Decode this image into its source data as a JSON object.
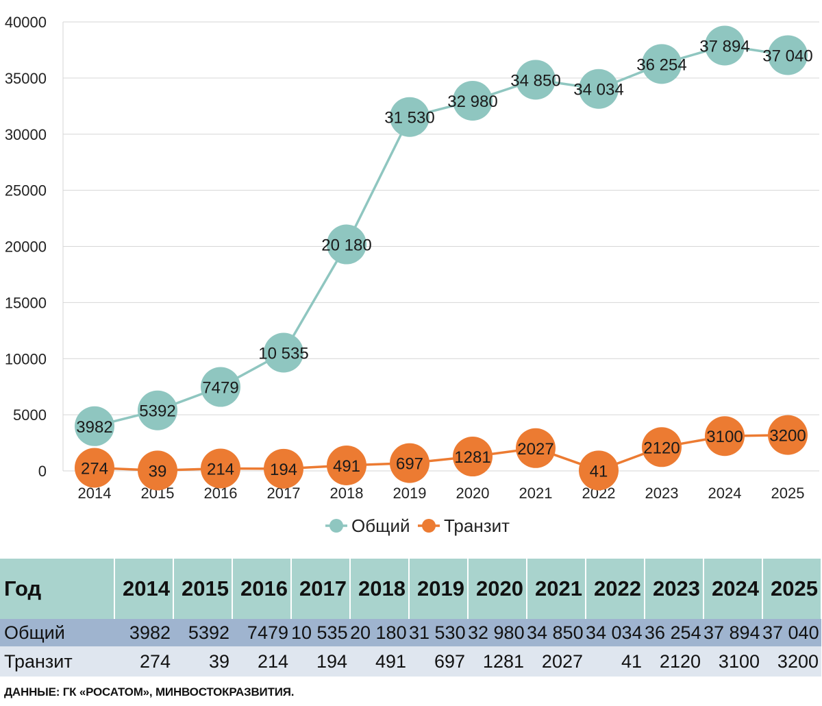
{
  "chart_data": {
    "type": "line",
    "categories": [
      "2014",
      "2015",
      "2016",
      "2017",
      "2018",
      "2019",
      "2020",
      "2021",
      "2022",
      "2023",
      "2024",
      "2025"
    ],
    "series": [
      {
        "name": "Общий",
        "color": "#8fc6c0",
        "values": [
          3982,
          5392,
          7479,
          10535,
          20180,
          31530,
          32980,
          34850,
          34034,
          36254,
          37894,
          37040
        ],
        "labels": [
          "3982",
          "5392",
          "7479",
          "10 535",
          "20 180",
          "31 530",
          "32 980",
          "34 850",
          "34 034",
          "36 254",
          "37 894",
          "37 040"
        ]
      },
      {
        "name": "Транзит",
        "color": "#ec7b32",
        "values": [
          274,
          39,
          214,
          194,
          491,
          697,
          1281,
          2027,
          41,
          2120,
          3100,
          3200
        ],
        "labels": [
          "274",
          "39",
          "214",
          "194",
          "491",
          "697",
          "1281",
          "2027",
          "41",
          "2120",
          "3100",
          "3200"
        ]
      }
    ],
    "ylim": [
      0,
      40000
    ],
    "yticks": [
      "0",
      "5000",
      "10000",
      "15000",
      "20000",
      "25000",
      "30000",
      "35000",
      "40000"
    ],
    "grid": true,
    "legend": "bottom-center"
  },
  "table": {
    "header_label": "Год",
    "years": [
      "2014",
      "2015",
      "2016",
      "2017",
      "2018",
      "2019",
      "2020",
      "2021",
      "2022",
      "2023",
      "2024",
      "2025"
    ],
    "rows": [
      {
        "label": "Общий",
        "values": [
          "3982",
          "5392",
          "7479",
          "10 535",
          "20 180",
          "31 530",
          "32 980",
          "34 850",
          "34 034",
          "36 254",
          "37 894",
          "37 040"
        ]
      },
      {
        "label": "Транзит",
        "values": [
          "274",
          "39",
          "214",
          "194",
          "491",
          "697",
          "1281",
          "2027",
          "41",
          "2120",
          "3100",
          "3200"
        ]
      }
    ]
  },
  "source_note": "ДАННЫЕ: ГК «РОСАТОМ», МИНВОСТОКРАЗВИТИЯ."
}
